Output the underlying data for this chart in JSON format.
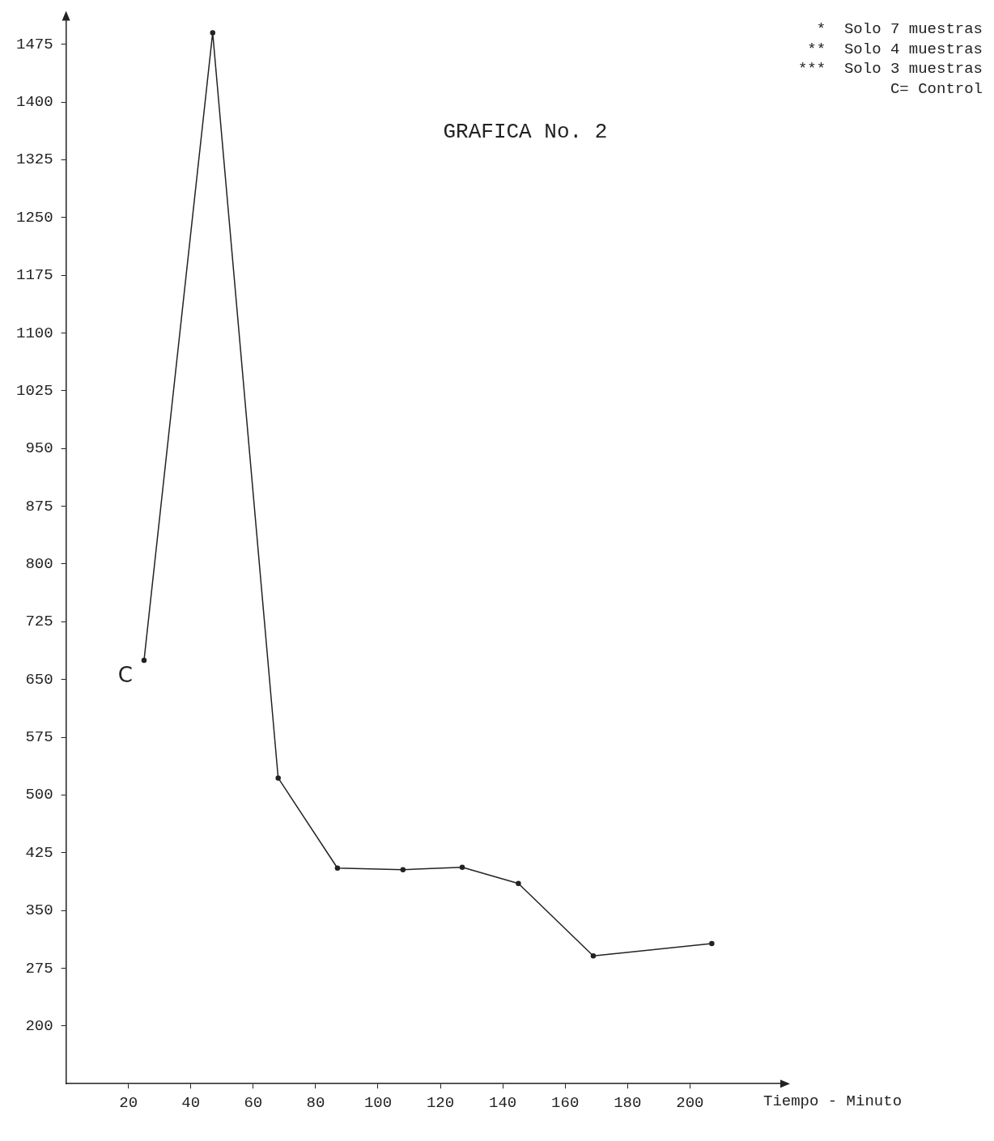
{
  "chart_data": {
    "type": "line",
    "title": "GRAFICA No. 2",
    "xlabel": "Tiempo - Minuto",
    "x": [
      25,
      47,
      68,
      87,
      108,
      127,
      145,
      169,
      207
    ],
    "values": [
      675,
      1490,
      522,
      405,
      403,
      406,
      385,
      291,
      307
    ],
    "color": "#222222",
    "marker": "circle",
    "line_style": "solid",
    "grid": false,
    "legend": false,
    "xlim": [
      0,
      230
    ],
    "xticks": [
      20,
      40,
      60,
      80,
      100,
      120,
      140,
      160,
      180,
      200
    ],
    "ylim": [
      125,
      1510
    ],
    "yticks": [
      200,
      275,
      350,
      425,
      500,
      575,
      650,
      725,
      800,
      875,
      950,
      1025,
      1100,
      1175,
      1250,
      1325,
      1400,
      1475
    ],
    "annotations": [
      "*  Solo 7 muestras",
      "**  Solo 4 muestras",
      "***  Solo 3 muestras",
      "C= Control",
      {
        "text": "C",
        "x": 25,
        "y": 675
      }
    ]
  }
}
